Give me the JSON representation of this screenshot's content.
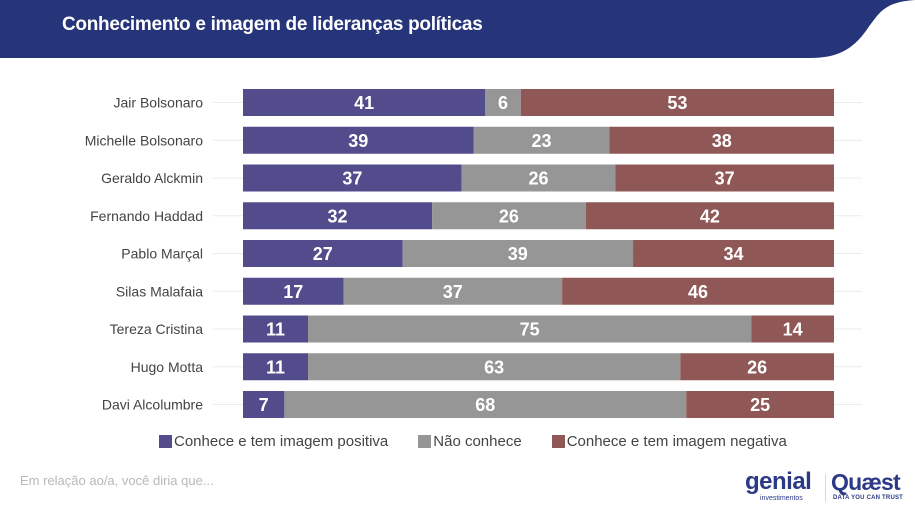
{
  "header": {
    "title": "Conhecimento e imagem de lideranças políticas",
    "background_color": "#263479"
  },
  "chart_data": {
    "type": "bar",
    "orientation": "horizontal",
    "stacked": true,
    "title": "Conhecimento e imagem de lideranças políticas",
    "xlabel": "",
    "ylabel": "",
    "xlim": [
      0,
      100
    ],
    "grid": true,
    "legend_position": "bottom",
    "categories": [
      "Jair Bolsonaro",
      "Michelle Bolsonaro",
      "Geraldo Alckmin",
      "Fernando Haddad",
      "Pablo Marçal",
      "Silas Malafaia",
      "Tereza Cristina",
      "Hugo Motta",
      "Davi Alcolumbre"
    ],
    "series": [
      {
        "name": "Conhece e tem imagem positiva",
        "color": "#524c8c",
        "values": [
          41,
          39,
          37,
          32,
          27,
          17,
          11,
          11,
          7
        ]
      },
      {
        "name": "Não conhece",
        "color": "#969696",
        "values": [
          6,
          23,
          26,
          26,
          39,
          37,
          75,
          63,
          68
        ]
      },
      {
        "name": "Conhece e tem imagem negativa",
        "color": "#8f5755",
        "values": [
          53,
          38,
          37,
          42,
          34,
          46,
          14,
          26,
          25
        ]
      }
    ]
  },
  "footer": {
    "note": "Em relação ao/a, você diria que...",
    "logo_left": "genial",
    "logo_left_sub": "investimentos",
    "logo_right": "Quæst",
    "logo_right_sub": "DATA YOU CAN TRUST"
  }
}
